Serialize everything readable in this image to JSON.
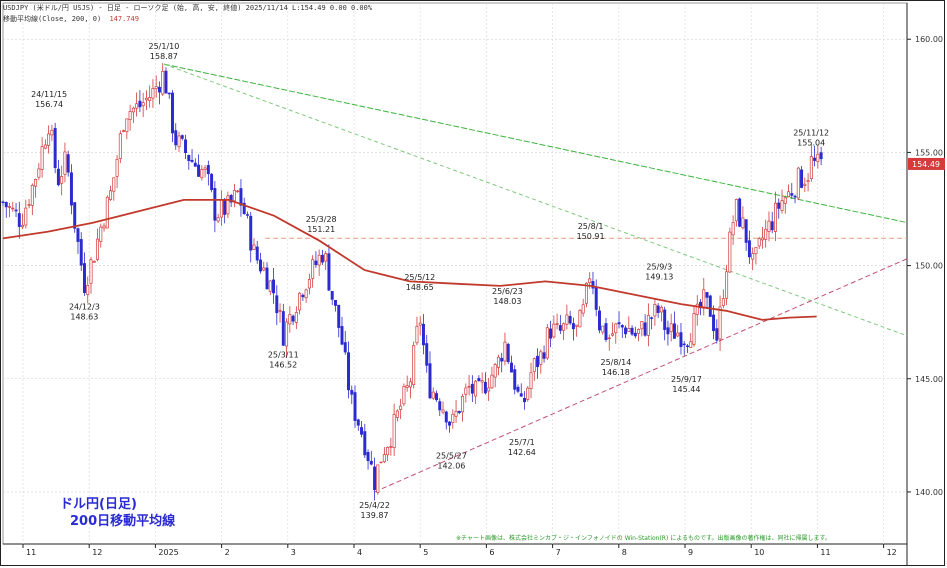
{
  "header": {
    "line1": "USDJPY (米ドル/円 USJS) - 日足 - ローソク足 (始, 高, 安, 終値)    2025/11/14  L:154.49  0.00  0.00%",
    "line2_label": "移動平均線(Close, 200, 0)",
    "line2_value": "147.749"
  },
  "title_box": {
    "line1": "ドル円(日足)",
    "line2": "200日移動平均線"
  },
  "notice": "※チャート画像は、株式会社ミンカブ・ジ・インフォノイドの Win-Station(R) によるものです。出版画像の著作権は、同社に帰属します。",
  "colors": {
    "up": "#d23a3a",
    "down": "#2b2bd0",
    "ma": "#c0392b",
    "green_line": "#3bb33b",
    "support_line": "#c25070",
    "resistance_dash": "#e0a080",
    "price_tag": "#d63a3a"
  },
  "chart_data": {
    "type": "candlestick",
    "series_name": "USD/JPY daily",
    "ylim": [
      137.7,
      161.6
    ],
    "y_ticks": [
      140.0,
      145.0,
      150.0,
      155.0,
      160.0
    ],
    "x_labels": [
      "11",
      "12",
      "2025",
      "2",
      "3",
      "4",
      "5",
      "6",
      "7",
      "8",
      "9",
      "10",
      "11",
      "12"
    ],
    "last_price": "154.49",
    "annotations": [
      {
        "date": "24/11/15",
        "value": "156.74",
        "pos": "above",
        "sx": 0.051
      },
      {
        "date": "25/1/10",
        "value": "158.87",
        "pos": "above",
        "sx": 0.178
      },
      {
        "date": "24/12/3",
        "value": "148.63",
        "pos": "below",
        "sx": 0.09
      },
      {
        "date": "25/3/11",
        "value": "146.52",
        "pos": "below",
        "sx": 0.31
      },
      {
        "date": "25/3/28",
        "value": "151.21",
        "pos": "above",
        "sx": 0.352
      },
      {
        "date": "25/4/22",
        "value": "139.87",
        "pos": "below",
        "sx": 0.411
      },
      {
        "date": "25/5/12",
        "value": "148.65",
        "pos": "above",
        "sx": 0.461
      },
      {
        "date": "25/5/27",
        "value": "142.06",
        "pos": "below",
        "sx": 0.496
      },
      {
        "date": "25/6/23",
        "value": "148.03",
        "pos": "above",
        "sx": 0.558
      },
      {
        "date": "25/7/1",
        "value": "142.64",
        "pos": "below",
        "sx": 0.574
      },
      {
        "date": "25/8/1",
        "value": "150.91",
        "pos": "above",
        "sx": 0.65
      },
      {
        "date": "25/8/14",
        "value": "146.18",
        "pos": "below",
        "sx": 0.678
      },
      {
        "date": "25/9/3",
        "value": "149.13",
        "pos": "above",
        "sx": 0.726
      },
      {
        "date": "25/9/17",
        "value": "145.44",
        "pos": "below",
        "sx": 0.756
      },
      {
        "date": "25/11/12",
        "value": "155.04",
        "pos": "above",
        "sx": 0.894
      }
    ],
    "path": [
      [
        0,
        152.8
      ],
      [
        0.02,
        152.0
      ],
      [
        0.035,
        153.8
      ],
      [
        0.051,
        156.4
      ],
      [
        0.06,
        153.7
      ],
      [
        0.07,
        154.7
      ],
      [
        0.08,
        151.7
      ],
      [
        0.09,
        149.2
      ],
      [
        0.1,
        150.4
      ],
      [
        0.11,
        152.0
      ],
      [
        0.12,
        153.3
      ],
      [
        0.135,
        156.8
      ],
      [
        0.15,
        157.0
      ],
      [
        0.165,
        157.6
      ],
      [
        0.178,
        158.5
      ],
      [
        0.19,
        155.6
      ],
      [
        0.2,
        155.1
      ],
      [
        0.21,
        154.6
      ],
      [
        0.225,
        154.0
      ],
      [
        0.235,
        152.3
      ],
      [
        0.25,
        152.6
      ],
      [
        0.26,
        153.2
      ],
      [
        0.268,
        152.2
      ],
      [
        0.278,
        150.5
      ],
      [
        0.29,
        149.7
      ],
      [
        0.3,
        148.8
      ],
      [
        0.31,
        147.0
      ],
      [
        0.32,
        148.0
      ],
      [
        0.333,
        149.2
      ],
      [
        0.345,
        150.0
      ],
      [
        0.355,
        150.7
      ],
      [
        0.362,
        149.0
      ],
      [
        0.37,
        147.6
      ],
      [
        0.375,
        146.6
      ],
      [
        0.385,
        144.0
      ],
      [
        0.395,
        142.9
      ],
      [
        0.403,
        141.8
      ],
      [
        0.411,
        140.5
      ],
      [
        0.42,
        141.8
      ],
      [
        0.43,
        142.6
      ],
      [
        0.44,
        143.8
      ],
      [
        0.45,
        144.8
      ],
      [
        0.461,
        147.8
      ],
      [
        0.47,
        144.8
      ],
      [
        0.48,
        144.2
      ],
      [
        0.49,
        143.6
      ],
      [
        0.496,
        142.9
      ],
      [
        0.505,
        143.8
      ],
      [
        0.515,
        144.6
      ],
      [
        0.525,
        144.3
      ],
      [
        0.535,
        144.9
      ],
      [
        0.545,
        145.4
      ],
      [
        0.555,
        146.6
      ],
      [
        0.565,
        145.0
      ],
      [
        0.574,
        143.6
      ],
      [
        0.585,
        145.4
      ],
      [
        0.595,
        146.0
      ],
      [
        0.605,
        147.2
      ],
      [
        0.615,
        147.0
      ],
      [
        0.625,
        147.4
      ],
      [
        0.635,
        147.1
      ],
      [
        0.643,
        148.1
      ],
      [
        0.65,
        149.9
      ],
      [
        0.66,
        147.4
      ],
      [
        0.67,
        146.8
      ],
      [
        0.678,
        147.2
      ],
      [
        0.69,
        147.3
      ],
      [
        0.7,
        146.9
      ],
      [
        0.71,
        147.3
      ],
      [
        0.718,
        147.8
      ],
      [
        0.726,
        148.0
      ],
      [
        0.735,
        147.0
      ],
      [
        0.745,
        147.1
      ],
      [
        0.756,
        146.8
      ],
      [
        0.765,
        147.5
      ],
      [
        0.775,
        148.4
      ],
      [
        0.783,
        148.0
      ],
      [
        0.79,
        146.8
      ],
      [
        0.8,
        150.0
      ],
      [
        0.81,
        152.6
      ],
      [
        0.82,
        151.6
      ],
      [
        0.83,
        149.9
      ],
      [
        0.84,
        151.2
      ],
      [
        0.85,
        151.9
      ],
      [
        0.86,
        152.8
      ],
      [
        0.87,
        153.2
      ],
      [
        0.88,
        153.8
      ],
      [
        0.89,
        154.0
      ],
      [
        0.894,
        154.6
      ],
      [
        0.9,
        154.4
      ],
      [
        0.905,
        154.5
      ]
    ],
    "ma200": [
      [
        0,
        151.2
      ],
      [
        0.05,
        151.5
      ],
      [
        0.1,
        151.9
      ],
      [
        0.15,
        152.4
      ],
      [
        0.2,
        152.9
      ],
      [
        0.25,
        152.9
      ],
      [
        0.3,
        152.2
      ],
      [
        0.35,
        151.1
      ],
      [
        0.4,
        149.8
      ],
      [
        0.45,
        149.3
      ],
      [
        0.5,
        149.2
      ],
      [
        0.55,
        149.1
      ],
      [
        0.6,
        149.3
      ],
      [
        0.65,
        149.1
      ],
      [
        0.7,
        148.7
      ],
      [
        0.75,
        148.3
      ],
      [
        0.8,
        148.0
      ],
      [
        0.84,
        147.6
      ],
      [
        0.87,
        147.7
      ],
      [
        0.9,
        147.75
      ]
    ],
    "trendlines": [
      {
        "name": "upper-trendline",
        "p0": [
          0.178,
          158.9
        ],
        "p1": [
          1.0,
          151.9
        ],
        "style": "dashed-green"
      },
      {
        "name": "channel-trendline",
        "p0": [
          0.178,
          158.9
        ],
        "p1": [
          1.0,
          146.9
        ],
        "style": "dashed-lightgreen"
      },
      {
        "name": "support-trendline",
        "p0": [
          0.411,
          140.0
        ],
        "p1": [
          1.0,
          150.3
        ],
        "style": "dashed-red"
      },
      {
        "name": "resistance-level",
        "p0": [
          0.29,
          151.21
        ],
        "p1": [
          1.0,
          151.21
        ],
        "style": "dashed-orange"
      }
    ]
  }
}
